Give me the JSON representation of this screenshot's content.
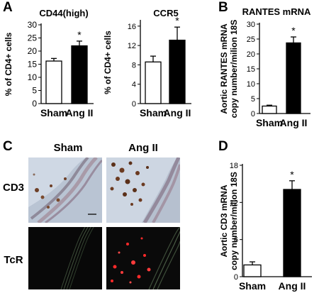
{
  "panels": {
    "a": "A",
    "b": "B",
    "c": "C",
    "d": "D"
  },
  "colors": {
    "sham_bar": "#ffffff",
    "angii_bar": "#000000",
    "ihc_bg": "#c8d2df",
    "fluor_bg": "#080808",
    "fluor_signal": "#ff2a2a"
  },
  "micrographs": {
    "col_sham": "Sham",
    "col_angii": "Ang II",
    "row_cd3": "CD3",
    "row_tcr": "TcR"
  },
  "chart_data": [
    {
      "id": "cd44",
      "type": "bar",
      "title": "CD44(high)",
      "ylabel": "% of CD4+ cells",
      "categories": [
        "Sham",
        "Ang II"
      ],
      "values": [
        16.2,
        22.0
      ],
      "errors": [
        1.0,
        1.8
      ],
      "ylim": [
        0,
        30
      ],
      "yticks": [
        "0",
        "5",
        "10",
        "15",
        "20",
        "25",
        "30"
      ],
      "significance": [
        "",
        "*"
      ],
      "colors": [
        "#ffffff",
        "#000000"
      ]
    },
    {
      "id": "ccr5",
      "type": "bar",
      "title": "CCR5",
      "ylabel": "% of CD4+ cells",
      "categories": [
        "Sham",
        "Ang II"
      ],
      "values": [
        8.6,
        13.1
      ],
      "errors": [
        1.2,
        2.7
      ],
      "ylim": [
        0,
        17
      ],
      "yticks": [
        "0",
        "4",
        "8",
        "12",
        "16"
      ],
      "significance": [
        "",
        "*"
      ],
      "colors": [
        "#ffffff",
        "#000000"
      ]
    },
    {
      "id": "rantes",
      "type": "bar",
      "title": "RANTES mRNA",
      "ylabel": [
        "Aortic RANTES mRNA",
        "copy number/milion 18S"
      ],
      "categories": [
        "Sham",
        "Ang II"
      ],
      "values": [
        2.5,
        23.7
      ],
      "errors": [
        0.3,
        2.0
      ],
      "ylim": [
        0,
        30
      ],
      "yticks": [
        "0",
        "5",
        "10",
        "15",
        "20",
        "25",
        "30"
      ],
      "significance": [
        "",
        "*"
      ],
      "colors": [
        "#ffffff",
        "#000000"
      ]
    },
    {
      "id": "cd3",
      "type": "bar",
      "title": "",
      "ylabel": [
        "Aortic CD3 mRNA",
        "copy number/milion 18S"
      ],
      "categories": [
        "Sham",
        "Ang II"
      ],
      "values": [
        1.9,
        14.1
      ],
      "errors": [
        0.5,
        1.4
      ],
      "ylim": [
        0,
        18
      ],
      "yticks": [
        "0",
        "6",
        "12",
        "18"
      ],
      "significance": [
        "",
        "*"
      ],
      "colors": [
        "#ffffff",
        "#000000"
      ]
    }
  ]
}
